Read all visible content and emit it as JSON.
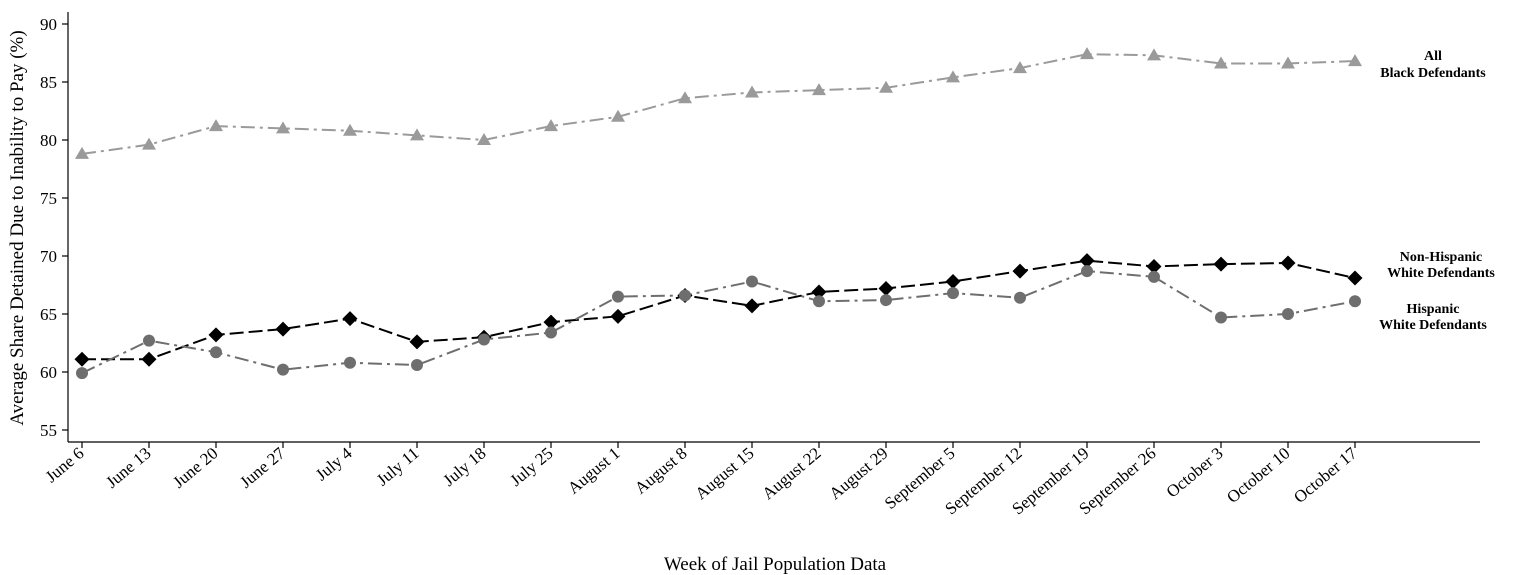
{
  "chart_data": {
    "type": "line",
    "xlabel": "Week of Jail Population Data",
    "ylabel": "Average Share Detained Due to Inability to Pay (%)",
    "ylim": [
      55,
      90
    ],
    "yticks": [
      55,
      60,
      65,
      70,
      75,
      80,
      85,
      90
    ],
    "grid": false,
    "categories": [
      "June 6",
      "June 13",
      "June 20",
      "June 27",
      "July 4",
      "July 11",
      "July 18",
      "July 25",
      "August 1",
      "August 8",
      "August 15",
      "August 22",
      "August 29",
      "September 5",
      "September 12",
      "September 19",
      "September 26",
      "October 3",
      "October 10",
      "October 17"
    ],
    "series": [
      {
        "name": "All Black Defendants",
        "label_lines": [
          "All",
          "Black Defendants"
        ],
        "marker": "triangle",
        "color": "#9a9a9a",
        "values": [
          78.8,
          79.6,
          81.2,
          81.0,
          80.8,
          80.4,
          80.0,
          81.2,
          82.0,
          83.6,
          84.1,
          84.3,
          84.5,
          85.4,
          86.2,
          87.4,
          87.3,
          86.6,
          86.6,
          86.8
        ]
      },
      {
        "name": "Non-Hispanic White Defendants",
        "label_lines": [
          "Non-Hispanic",
          "White Defendants"
        ],
        "marker": "diamond",
        "color": "#000000",
        "values": [
          61.1,
          61.1,
          63.2,
          63.7,
          64.6,
          62.6,
          63.0,
          64.3,
          64.8,
          66.6,
          65.7,
          66.9,
          67.2,
          67.8,
          68.7,
          69.6,
          69.1,
          69.3,
          69.4,
          68.1
        ]
      },
      {
        "name": "Hispanic White Defendants",
        "label_lines": [
          "Hispanic",
          "White Defendants"
        ],
        "marker": "circle",
        "color": "#6e6e6e",
        "values": [
          59.9,
          62.7,
          61.7,
          60.2,
          60.8,
          60.6,
          62.8,
          63.4,
          66.5,
          66.6,
          67.8,
          66.1,
          66.2,
          66.8,
          66.4,
          68.7,
          68.2,
          64.7,
          65.0,
          66.1
        ]
      }
    ]
  }
}
